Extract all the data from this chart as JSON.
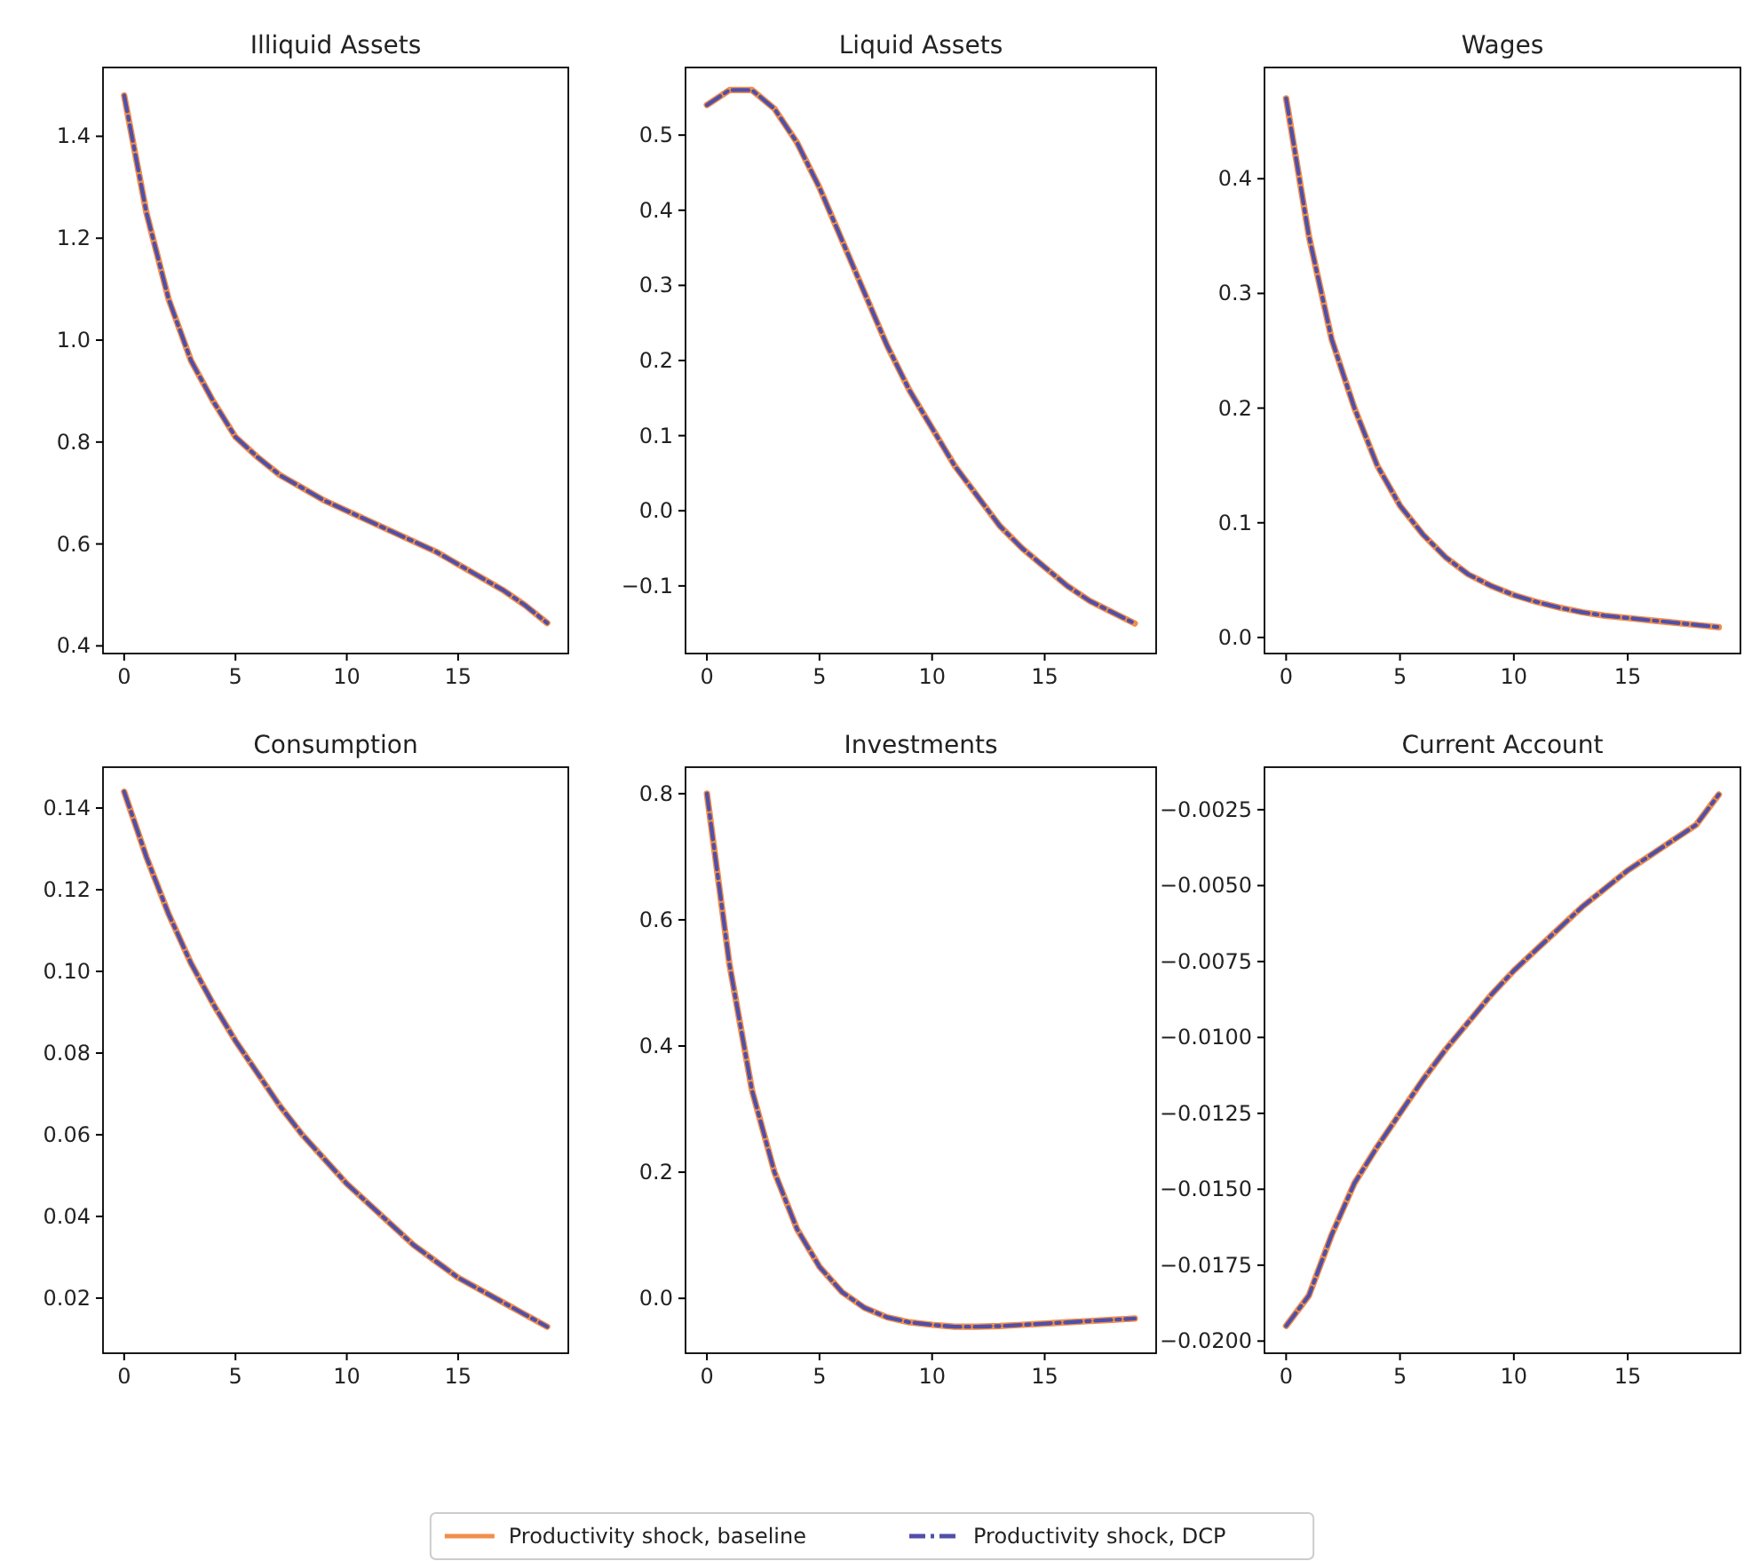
{
  "chart_data": [
    {
      "type": "line",
      "title": "Illiquid Assets",
      "legend": "bottom",
      "xlim": [
        -0.95,
        19.95
      ],
      "xticks": [
        0,
        5,
        10,
        15
      ],
      "ylim": [
        0.385,
        1.535
      ],
      "yticks": [
        0.4,
        0.6,
        0.8,
        {
          "value": 1,
          "label": "1.0"
        },
        1.2,
        1.4
      ],
      "x": [
        0,
        1,
        2,
        3,
        4,
        5,
        6,
        7,
        8,
        9,
        10,
        11,
        12,
        13,
        14,
        15,
        16,
        17,
        18,
        19
      ],
      "series": [
        {
          "name": "Productivity shock, baseline",
          "color": "#f28e4b",
          "line_style": "solid",
          "values": [
            1.48,
            1.25,
            1.08,
            0.96,
            0.88,
            0.81,
            0.77,
            0.735,
            0.71,
            0.685,
            0.665,
            0.645,
            0.625,
            0.605,
            0.585,
            0.56,
            0.535,
            0.51,
            0.48,
            0.445
          ]
        },
        {
          "name": "Productivity shock, DCP",
          "color": "#5050a8",
          "line_style": "dashdot",
          "values": [
            1.48,
            1.25,
            1.08,
            0.96,
            0.88,
            0.81,
            0.77,
            0.735,
            0.71,
            0.685,
            0.665,
            0.645,
            0.625,
            0.605,
            0.585,
            0.56,
            0.535,
            0.51,
            0.48,
            0.445
          ]
        }
      ]
    },
    {
      "type": "line",
      "title": "Liquid Assets",
      "legend": "bottom",
      "xlim": [
        -0.95,
        19.95
      ],
      "xticks": [
        0,
        5,
        10,
        15
      ],
      "ylim": [
        -0.19,
        0.59
      ],
      "yticks": [
        {
          "value": -0.1,
          "label": "−0.1"
        },
        {
          "value": 0,
          "label": "0.0"
        },
        0.1,
        0.2,
        0.3,
        0.4,
        0.5
      ],
      "x": [
        0,
        1,
        2,
        3,
        4,
        5,
        6,
        7,
        8,
        9,
        10,
        11,
        12,
        13,
        14,
        15,
        16,
        17,
        18,
        19
      ],
      "series": [
        {
          "name": "Productivity shock, baseline",
          "color": "#f28e4b",
          "line_style": "solid",
          "values": [
            0.54,
            0.56,
            0.56,
            0.535,
            0.49,
            0.43,
            0.36,
            0.29,
            0.22,
            0.16,
            0.11,
            0.06,
            0.02,
            -0.02,
            -0.05,
            -0.075,
            -0.1,
            -0.12,
            -0.135,
            -0.15
          ]
        },
        {
          "name": "Productivity shock, DCP",
          "color": "#5050a8",
          "line_style": "dashdot",
          "values": [
            0.54,
            0.56,
            0.56,
            0.535,
            0.49,
            0.43,
            0.36,
            0.29,
            0.22,
            0.16,
            0.11,
            0.06,
            0.02,
            -0.02,
            -0.05,
            -0.075,
            -0.1,
            -0.12,
            -0.135,
            -0.15
          ]
        }
      ]
    },
    {
      "type": "line",
      "title": "Wages",
      "legend": "bottom",
      "xlim": [
        -0.95,
        19.95
      ],
      "xticks": [
        0,
        5,
        10,
        15
      ],
      "ylim": [
        -0.014,
        0.497
      ],
      "yticks": [
        {
          "value": 0,
          "label": "0.0"
        },
        0.1,
        0.2,
        0.3,
        0.4
      ],
      "x": [
        0,
        1,
        2,
        3,
        4,
        5,
        6,
        7,
        8,
        9,
        10,
        11,
        12,
        13,
        14,
        15,
        16,
        17,
        18,
        19
      ],
      "series": [
        {
          "name": "Productivity shock, baseline",
          "color": "#f28e4b",
          "line_style": "solid",
          "values": [
            0.47,
            0.35,
            0.26,
            0.2,
            0.15,
            0.115,
            0.09,
            0.07,
            0.055,
            0.045,
            0.037,
            0.031,
            0.026,
            0.022,
            0.019,
            0.017,
            0.015,
            0.013,
            0.011,
            0.009
          ]
        },
        {
          "name": "Productivity shock, DCP",
          "color": "#5050a8",
          "line_style": "dashdot",
          "values": [
            0.47,
            0.35,
            0.26,
            0.2,
            0.15,
            0.115,
            0.09,
            0.07,
            0.055,
            0.045,
            0.037,
            0.031,
            0.026,
            0.022,
            0.019,
            0.017,
            0.015,
            0.013,
            0.011,
            0.009
          ]
        }
      ]
    },
    {
      "type": "line",
      "title": "Consumption",
      "legend": "bottom",
      "xlim": [
        -0.95,
        19.95
      ],
      "xticks": [
        0,
        5,
        10,
        15
      ],
      "ylim": [
        0.0065,
        0.15
      ],
      "yticks": [
        0.02,
        0.04,
        0.06,
        0.08,
        {
          "value": 0.1,
          "label": "0.10"
        },
        0.12,
        0.14
      ],
      "x": [
        0,
        1,
        2,
        3,
        4,
        5,
        6,
        7,
        8,
        9,
        10,
        11,
        12,
        13,
        14,
        15,
        16,
        17,
        18,
        19
      ],
      "series": [
        {
          "name": "Productivity shock, baseline",
          "color": "#f28e4b",
          "line_style": "solid",
          "values": [
            0.144,
            0.128,
            0.114,
            0.102,
            0.092,
            0.083,
            0.075,
            0.067,
            0.06,
            0.054,
            0.048,
            0.043,
            0.038,
            0.033,
            0.029,
            0.025,
            0.022,
            0.019,
            0.016,
            0.013
          ]
        },
        {
          "name": "Productivity shock, DCP",
          "color": "#5050a8",
          "line_style": "dashdot",
          "values": [
            0.144,
            0.128,
            0.114,
            0.102,
            0.092,
            0.083,
            0.075,
            0.067,
            0.06,
            0.054,
            0.048,
            0.043,
            0.038,
            0.033,
            0.029,
            0.025,
            0.022,
            0.019,
            0.016,
            0.013
          ]
        }
      ]
    },
    {
      "type": "line",
      "title": "Investments",
      "legend": "bottom",
      "xlim": [
        -0.95,
        19.95
      ],
      "xticks": [
        0,
        5,
        10,
        15
      ],
      "ylim": [
        -0.087,
        0.842
      ],
      "yticks": [
        {
          "value": 0,
          "label": "0.0"
        },
        0.2,
        0.4,
        0.6,
        0.8
      ],
      "x": [
        0,
        1,
        2,
        3,
        4,
        5,
        6,
        7,
        8,
        9,
        10,
        11,
        12,
        13,
        14,
        15,
        16,
        17,
        18,
        19
      ],
      "series": [
        {
          "name": "Productivity shock, baseline",
          "color": "#f28e4b",
          "line_style": "solid",
          "values": [
            0.8,
            0.53,
            0.33,
            0.2,
            0.11,
            0.05,
            0.01,
            -0.015,
            -0.03,
            -0.038,
            -0.042,
            -0.045,
            -0.045,
            -0.044,
            -0.042,
            -0.04,
            -0.038,
            -0.036,
            -0.034,
            -0.032
          ]
        },
        {
          "name": "Productivity shock, DCP",
          "color": "#5050a8",
          "line_style": "dashdot",
          "values": [
            0.8,
            0.53,
            0.33,
            0.2,
            0.11,
            0.05,
            0.01,
            -0.015,
            -0.03,
            -0.038,
            -0.042,
            -0.045,
            -0.045,
            -0.044,
            -0.042,
            -0.04,
            -0.038,
            -0.036,
            -0.034,
            -0.032
          ]
        }
      ]
    },
    {
      "type": "line",
      "title": "Current Account",
      "legend": "bottom",
      "xlim": [
        -0.95,
        19.95
      ],
      "xticks": [
        0,
        5,
        10,
        15
      ],
      "ylim": [
        -0.0204,
        -0.0011
      ],
      "yticks": [
        {
          "value": -0.02,
          "label": "−0.0200"
        },
        {
          "value": -0.0175,
          "label": "−0.0175"
        },
        {
          "value": -0.015,
          "label": "−0.0150"
        },
        {
          "value": -0.0125,
          "label": "−0.0125"
        },
        {
          "value": -0.01,
          "label": "−0.0100"
        },
        {
          "value": -0.0075,
          "label": "−0.0075"
        },
        {
          "value": -0.005,
          "label": "−0.0050"
        },
        {
          "value": -0.0025,
          "label": "−0.0025"
        }
      ],
      "x": [
        0,
        1,
        2,
        3,
        4,
        5,
        6,
        7,
        8,
        9,
        10,
        11,
        12,
        13,
        14,
        15,
        16,
        17,
        18,
        19
      ],
      "series": [
        {
          "name": "Productivity shock, baseline",
          "color": "#f28e4b",
          "line_style": "solid",
          "values": [
            -0.0195,
            -0.0185,
            -0.0165,
            -0.0148,
            -0.0136,
            -0.0125,
            -0.0114,
            -0.0104,
            -0.0095,
            -0.0086,
            -0.0078,
            -0.0071,
            -0.0064,
            -0.0057,
            -0.0051,
            -0.0045,
            -0.004,
            -0.0035,
            -0.003,
            -0.002
          ]
        },
        {
          "name": "Productivity shock, DCP",
          "color": "#5050a8",
          "line_style": "dashdot",
          "values": [
            -0.0195,
            -0.0185,
            -0.0165,
            -0.0148,
            -0.0136,
            -0.0125,
            -0.0114,
            -0.0104,
            -0.0095,
            -0.0086,
            -0.0078,
            -0.0071,
            -0.0064,
            -0.0057,
            -0.0051,
            -0.0045,
            -0.004,
            -0.0035,
            -0.003,
            -0.002
          ]
        }
      ]
    }
  ]
}
